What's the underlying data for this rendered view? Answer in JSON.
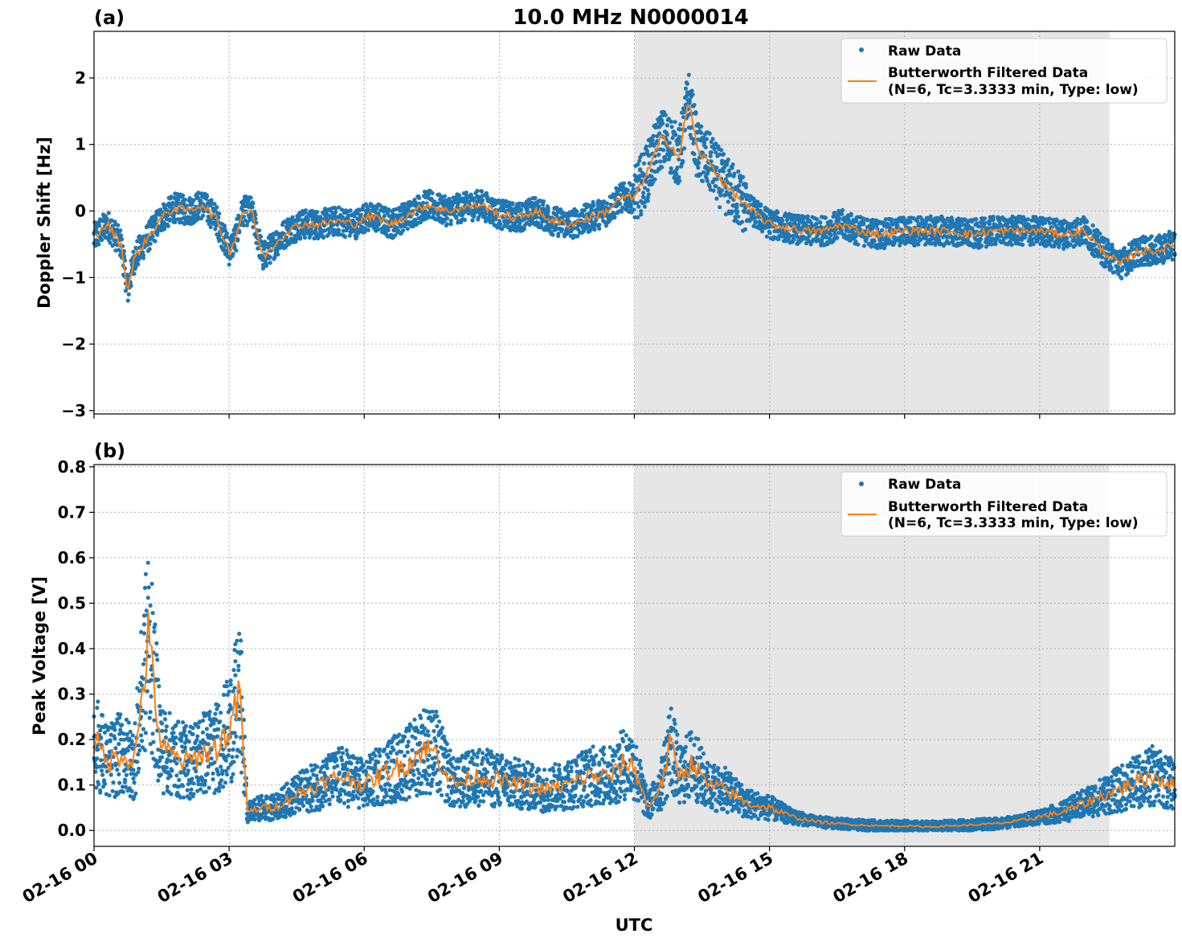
{
  "figure": {
    "title": "10.0 MHz N0000014",
    "xlabel": "UTC",
    "x_tick_labels": [
      "02-16 00",
      "02-16 03",
      "02-16 06",
      "02-16 09",
      "02-16 12",
      "02-16 15",
      "02-16 18",
      "02-16 21"
    ]
  },
  "colors": {
    "raw": "#1f77b4",
    "filtered": "#ff7f0e",
    "shade": "#e6e6e6",
    "grid": "#b0b0b0"
  },
  "legend": {
    "raw_label": "Raw Data",
    "filtered_label_line1": "Butterworth Filtered Data",
    "filtered_label_line2": "(N=6, Tc=3.3333 min, Type: low)"
  },
  "panels": [
    {
      "panel_label": "(a)",
      "ylabel": "Doppler Shift [Hz]",
      "y_tick_labels": [
        "−3",
        "−2",
        "−1",
        "0",
        "1",
        "2"
      ]
    },
    {
      "panel_label": "(b)",
      "ylabel": "Peak Voltage [V]",
      "y_tick_labels": [
        "0.0",
        "0.1",
        "0.2",
        "0.3",
        "0.4",
        "0.5",
        "0.6",
        "0.7",
        "0.8"
      ]
    }
  ],
  "chart_data": [
    {
      "type": "scatter",
      "title": "10.0 MHz N0000014",
      "xlabel": "",
      "ylabel": "Doppler Shift [Hz]",
      "x_unit": "hours UTC since 02-16 00",
      "xlim": [
        0,
        24
      ],
      "ylim": [
        -3.05,
        2.7
      ],
      "y_ticks": [
        -3,
        -2,
        -1,
        0,
        1,
        2
      ],
      "x_ticks": [
        0,
        3,
        6,
        9,
        12,
        15,
        18,
        21
      ],
      "grid": true,
      "legend_position": "top-right",
      "shaded_region": [
        12,
        22.55
      ],
      "series": [
        {
          "name": "Raw Data",
          "style": "points",
          "x": [
            0,
            0.3,
            0.6,
            0.75,
            0.9,
            1.2,
            1.5,
            1.8,
            2.1,
            2.4,
            2.7,
            3.0,
            3.15,
            3.3,
            3.5,
            3.75,
            4.0,
            4.3,
            4.6,
            5.0,
            5.4,
            5.8,
            6.0,
            6.3,
            6.6,
            7.0,
            7.4,
            7.8,
            8.2,
            8.6,
            9.0,
            9.4,
            9.8,
            10.2,
            10.6,
            11.0,
            11.4,
            11.7,
            12.0,
            12.3,
            12.6,
            12.8,
            13.0,
            13.2,
            13.4,
            13.7,
            14.0,
            14.3,
            14.6,
            15.0,
            15.4,
            15.8,
            16.2,
            16.6,
            17.0,
            17.5,
            18.0,
            18.5,
            19.0,
            19.5,
            20.0,
            20.5,
            21.0,
            21.5,
            22.0,
            22.4,
            22.8,
            23.2,
            23.6,
            24.0
          ],
          "y": [
            -0.4,
            -0.2,
            -0.5,
            -1.2,
            -0.7,
            -0.4,
            -0.1,
            0.05,
            0.0,
            0.1,
            -0.1,
            -0.6,
            -0.4,
            0.0,
            0.0,
            -0.7,
            -0.5,
            -0.3,
            -0.2,
            -0.2,
            -0.15,
            -0.2,
            -0.1,
            -0.1,
            -0.2,
            -0.05,
            0.1,
            0.0,
            0.05,
            0.1,
            -0.05,
            -0.1,
            0.0,
            -0.15,
            -0.2,
            -0.1,
            0.0,
            0.2,
            0.2,
            0.6,
            1.1,
            1.0,
            0.8,
            1.7,
            0.9,
            0.7,
            0.4,
            0.2,
            0.0,
            -0.2,
            -0.25,
            -0.3,
            -0.3,
            -0.2,
            -0.3,
            -0.35,
            -0.3,
            -0.3,
            -0.3,
            -0.35,
            -0.3,
            -0.3,
            -0.3,
            -0.35,
            -0.3,
            -0.6,
            -0.8,
            -0.6,
            -0.6,
            -0.5
          ]
        },
        {
          "name": "Butterworth Filtered Data\n(N=6, Tc=3.3333 min, Type: low)",
          "style": "line",
          "x": [
            0,
            0.3,
            0.6,
            0.75,
            0.9,
            1.2,
            1.5,
            1.8,
            2.1,
            2.4,
            2.7,
            3.0,
            3.15,
            3.3,
            3.5,
            3.75,
            4.0,
            4.3,
            4.6,
            5.0,
            5.4,
            5.8,
            6.0,
            6.3,
            6.6,
            7.0,
            7.4,
            7.8,
            8.2,
            8.6,
            9.0,
            9.4,
            9.8,
            10.2,
            10.6,
            11.0,
            11.4,
            11.7,
            12.0,
            12.3,
            12.6,
            12.8,
            13.0,
            13.2,
            13.4,
            13.7,
            14.0,
            14.3,
            14.6,
            15.0,
            15.4,
            15.8,
            16.2,
            16.6,
            17.0,
            17.5,
            18.0,
            18.5,
            19.0,
            19.5,
            20.0,
            20.5,
            21.0,
            21.5,
            22.0,
            22.4,
            22.8,
            23.2,
            23.6,
            24.0
          ],
          "y": [
            -0.4,
            -0.2,
            -0.5,
            -1.2,
            -0.7,
            -0.4,
            -0.1,
            0.05,
            0.0,
            0.1,
            -0.1,
            -0.6,
            -0.4,
            0.0,
            0.0,
            -0.7,
            -0.5,
            -0.3,
            -0.2,
            -0.2,
            -0.15,
            -0.2,
            -0.1,
            -0.1,
            -0.2,
            -0.05,
            0.1,
            0.0,
            0.05,
            0.1,
            -0.05,
            -0.1,
            0.0,
            -0.15,
            -0.2,
            -0.1,
            0.0,
            0.2,
            0.2,
            0.6,
            1.1,
            1.0,
            0.8,
            1.7,
            0.9,
            0.7,
            0.4,
            0.2,
            0.0,
            -0.2,
            -0.25,
            -0.3,
            -0.3,
            -0.2,
            -0.3,
            -0.35,
            -0.3,
            -0.3,
            -0.3,
            -0.35,
            -0.3,
            -0.3,
            -0.3,
            -0.35,
            -0.3,
            -0.6,
            -0.8,
            -0.6,
            -0.6,
            -0.5
          ]
        }
      ]
    },
    {
      "type": "scatter",
      "title": "",
      "xlabel": "UTC",
      "ylabel": "Peak Voltage [V]",
      "x_unit": "hours UTC since 02-16 00",
      "xlim": [
        0,
        24
      ],
      "ylim": [
        -0.035,
        0.805
      ],
      "y_ticks": [
        0.0,
        0.1,
        0.2,
        0.3,
        0.4,
        0.5,
        0.6,
        0.7,
        0.8
      ],
      "x_ticks": [
        0,
        3,
        6,
        9,
        12,
        15,
        18,
        21
      ],
      "grid": true,
      "legend_position": "top-right",
      "shaded_region": [
        12,
        22.55
      ],
      "series": [
        {
          "name": "Raw Data",
          "style": "points",
          "x": [
            0,
            0.3,
            0.6,
            0.9,
            1.2,
            1.5,
            1.8,
            2.1,
            2.4,
            2.7,
            3.0,
            3.25,
            3.4,
            3.7,
            4.0,
            4.5,
            5.0,
            5.5,
            6.0,
            6.5,
            7.0,
            7.3,
            7.6,
            8.0,
            8.5,
            9.0,
            9.5,
            10.0,
            10.5,
            11.0,
            11.5,
            11.8,
            12.0,
            12.3,
            12.6,
            12.8,
            13.0,
            13.3,
            13.6,
            14.0,
            14.5,
            15.0,
            15.5,
            16.0,
            16.5,
            17.0,
            17.5,
            18.0,
            18.5,
            19.0,
            19.5,
            20.0,
            20.5,
            21.0,
            21.5,
            22.0,
            22.5,
            23.0,
            23.5,
            24.0
          ],
          "y": [
            0.2,
            0.15,
            0.17,
            0.15,
            0.42,
            0.18,
            0.16,
            0.15,
            0.17,
            0.18,
            0.22,
            0.3,
            0.04,
            0.05,
            0.05,
            0.08,
            0.1,
            0.12,
            0.1,
            0.13,
            0.15,
            0.18,
            0.17,
            0.1,
            0.12,
            0.11,
            0.1,
            0.09,
            0.1,
            0.12,
            0.12,
            0.15,
            0.14,
            0.05,
            0.1,
            0.19,
            0.12,
            0.15,
            0.1,
            0.09,
            0.06,
            0.05,
            0.03,
            0.02,
            0.015,
            0.012,
            0.01,
            0.01,
            0.008,
            0.01,
            0.012,
            0.015,
            0.02,
            0.03,
            0.04,
            0.06,
            0.08,
            0.1,
            0.12,
            0.1
          ]
        },
        {
          "name": "Butterworth Filtered Data\n(N=6, Tc=3.3333 min, Type: low)",
          "style": "line",
          "x": [
            0,
            0.3,
            0.6,
            0.9,
            1.2,
            1.5,
            1.8,
            2.1,
            2.4,
            2.7,
            3.0,
            3.25,
            3.4,
            3.7,
            4.0,
            4.5,
            5.0,
            5.5,
            6.0,
            6.5,
            7.0,
            7.3,
            7.6,
            8.0,
            8.5,
            9.0,
            9.5,
            10.0,
            10.5,
            11.0,
            11.5,
            11.8,
            12.0,
            12.3,
            12.6,
            12.8,
            13.0,
            13.3,
            13.6,
            14.0,
            14.5,
            15.0,
            15.5,
            16.0,
            16.5,
            17.0,
            17.5,
            18.0,
            18.5,
            19.0,
            19.5,
            20.0,
            20.5,
            21.0,
            21.5,
            22.0,
            22.5,
            23.0,
            23.5,
            24.0
          ],
          "y": [
            0.2,
            0.15,
            0.17,
            0.15,
            0.42,
            0.18,
            0.16,
            0.15,
            0.17,
            0.18,
            0.22,
            0.3,
            0.04,
            0.05,
            0.05,
            0.08,
            0.1,
            0.12,
            0.1,
            0.13,
            0.15,
            0.18,
            0.17,
            0.1,
            0.12,
            0.11,
            0.1,
            0.09,
            0.1,
            0.12,
            0.12,
            0.15,
            0.14,
            0.05,
            0.1,
            0.19,
            0.12,
            0.15,
            0.1,
            0.09,
            0.06,
            0.05,
            0.03,
            0.02,
            0.015,
            0.012,
            0.01,
            0.01,
            0.008,
            0.01,
            0.012,
            0.015,
            0.02,
            0.03,
            0.04,
            0.06,
            0.08,
            0.1,
            0.12,
            0.1
          ]
        }
      ]
    }
  ]
}
